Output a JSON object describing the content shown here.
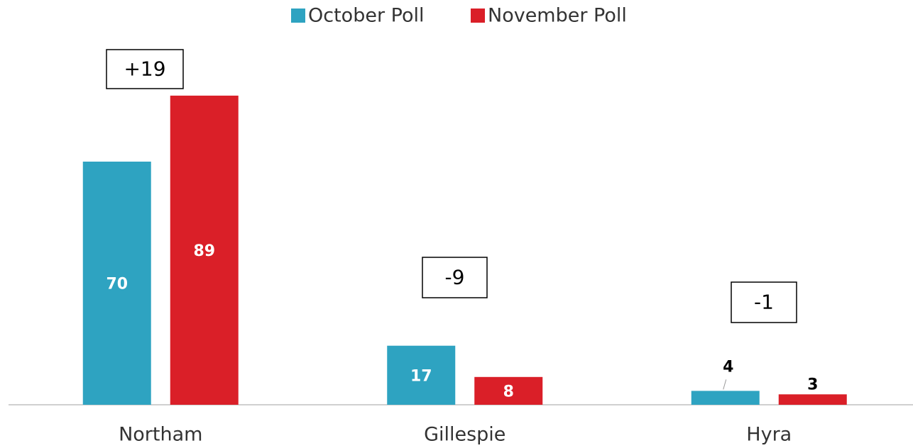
{
  "chart_data": {
    "type": "bar",
    "categories": [
      "Northam",
      "Gillespie",
      "Hyra"
    ],
    "series": [
      {
        "name": "October Poll",
        "color": "#2ea3c1",
        "values": [
          70,
          17,
          4
        ]
      },
      {
        "name": "November Poll",
        "color": "#da1f28",
        "values": [
          89,
          8,
          3
        ]
      }
    ],
    "annotations": [
      "+19",
      "-9",
      "-1"
    ],
    "legend": "top"
  }
}
